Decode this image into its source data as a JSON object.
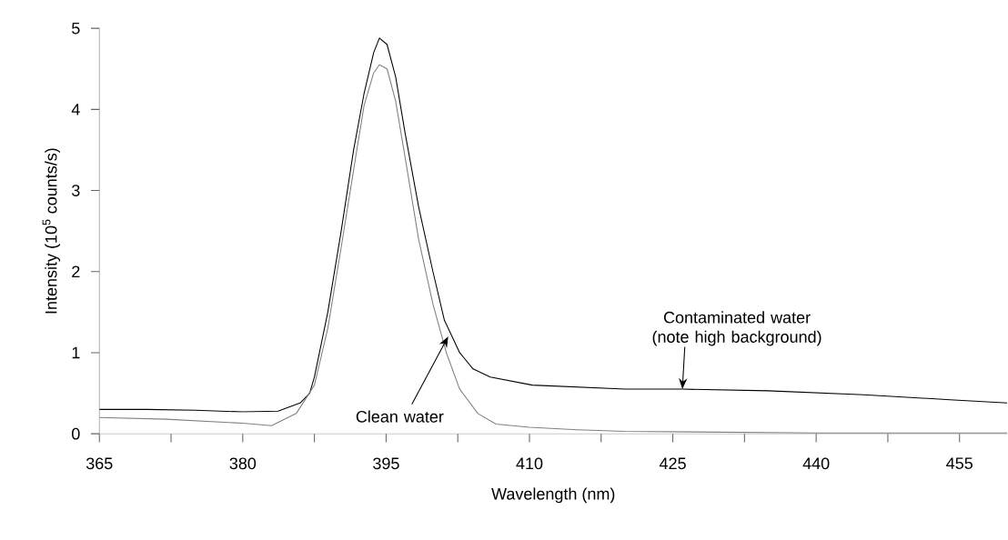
{
  "chart_data": {
    "type": "line",
    "xlabel": "Wavelength (nm)",
    "ylabel": "Intensity (10$^{5}$ counts/s)",
    "xlim": [
      365,
      460
    ],
    "xticks": [
      365,
      {
        "value": 372.5,
        "label": null
      },
      380,
      {
        "value": 387.5,
        "label": null
      },
      395,
      {
        "value": 402.5,
        "label": null
      },
      410,
      {
        "value": 417.5,
        "label": null
      },
      425,
      {
        "value": 432.5,
        "label": null
      },
      440,
      {
        "value": 447.5,
        "label": null
      },
      455
    ],
    "ylim": [
      0,
      5
    ],
    "yticks": [
      0,
      1,
      2,
      3,
      4,
      5
    ],
    "grid": false,
    "legend": false,
    "marker": "none",
    "line_style": "solid",
    "series": [
      {
        "color": "#000000",
        "x": [
          365,
          370,
          375,
          380,
          383.7,
          386,
          387,
          387.5,
          388.9,
          390.3,
          391.6,
          392.7,
          393.7,
          394.3,
          395.1,
          396.0,
          397.0,
          398.4,
          399.9,
          401.1,
          402.7,
          404.1,
          405.9,
          410.3,
          420,
          426,
          435,
          445,
          454,
          460
        ],
        "values": [
          0.3,
          0.3,
          0.29,
          0.27,
          0.28,
          0.38,
          0.5,
          0.7,
          1.5,
          2.5,
          3.5,
          4.2,
          4.7,
          4.88,
          4.8,
          4.4,
          3.7,
          2.8,
          2.0,
          1.4,
          1.0,
          0.8,
          0.7,
          0.6,
          0.55,
          0.55,
          0.53,
          0.48,
          0.42,
          0.38
        ]
      },
      {
        "color": "#808080",
        "x": [
          365,
          372,
          380,
          383,
          385.6,
          387.5,
          388.9,
          390.3,
          391.8,
          392.7,
          393.7,
          394.3,
          395.1,
          396.0,
          397.0,
          398.4,
          399.9,
          401.3,
          402.7,
          404.6,
          406.5,
          410,
          415,
          420,
          440,
          460
        ],
        "values": [
          0.2,
          0.18,
          0.13,
          0.1,
          0.25,
          0.6,
          1.3,
          2.3,
          3.4,
          4.05,
          4.45,
          4.55,
          4.5,
          4.1,
          3.4,
          2.4,
          1.6,
          1.0,
          0.55,
          0.25,
          0.12,
          0.08,
          0.05,
          0.03,
          0.01,
          0.01
        ]
      }
    ],
    "annotations": [
      {
        "text": "Clean water",
        "x": 401.5,
        "y": 1.2
      },
      {
        "text": "Contaminated water (note high background)",
        "x": 426,
        "y": 0.55
      }
    ]
  }
}
